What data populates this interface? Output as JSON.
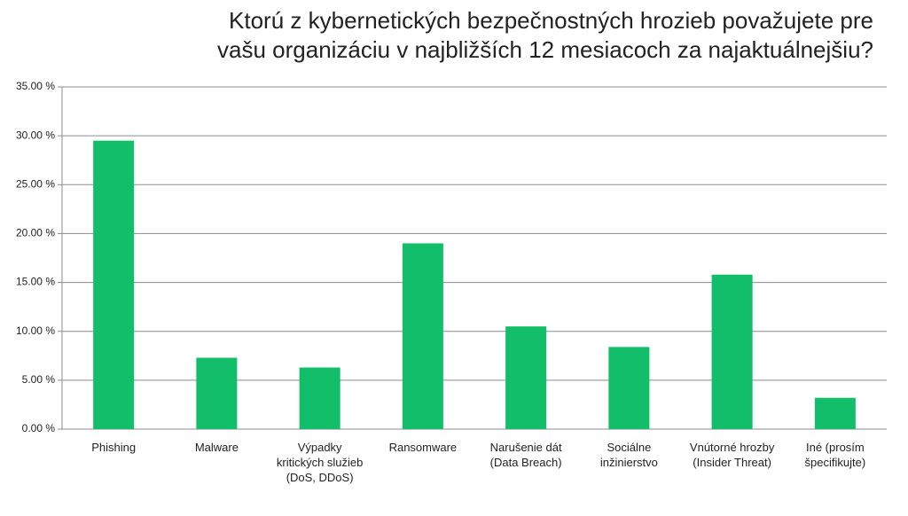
{
  "chart_data": {
    "type": "bar",
    "title": [
      "Ktorú z kybernetických bezpečnostných hrozieb považujete pre",
      "vašu organizáciu v najbližších 12 mesiacoch za najaktuálnejšiu?"
    ],
    "categories": [
      "Phishing",
      "Malware",
      "Výpadky kritických služieb (DoS, DDoS)",
      "Ransomware",
      "Narušenie dát (Data Breach)",
      "Sociálne inžinierstvo",
      "Vnútorné hrozby (Insider Threat)",
      "Iné (prosím špecifikujte)"
    ],
    "values": [
      29.5,
      7.3,
      6.3,
      19.0,
      10.5,
      8.4,
      15.8,
      3.2
    ],
    "color": "#12be6a",
    "ylim": [
      0,
      35
    ],
    "yticks": [
      {
        "value": 0,
        "label": "0.00 %"
      },
      {
        "value": 5,
        "label": "5.00 %"
      },
      {
        "value": 10,
        "label": "10.00 %"
      },
      {
        "value": 15,
        "label": "15.00 %"
      },
      {
        "value": 20,
        "label": "20.00 %"
      },
      {
        "value": 25,
        "label": "25.00 %"
      },
      {
        "value": 30,
        "label": "30.00 %"
      },
      {
        "value": 35,
        "label": "35.00 %"
      }
    ],
    "grid": true
  }
}
